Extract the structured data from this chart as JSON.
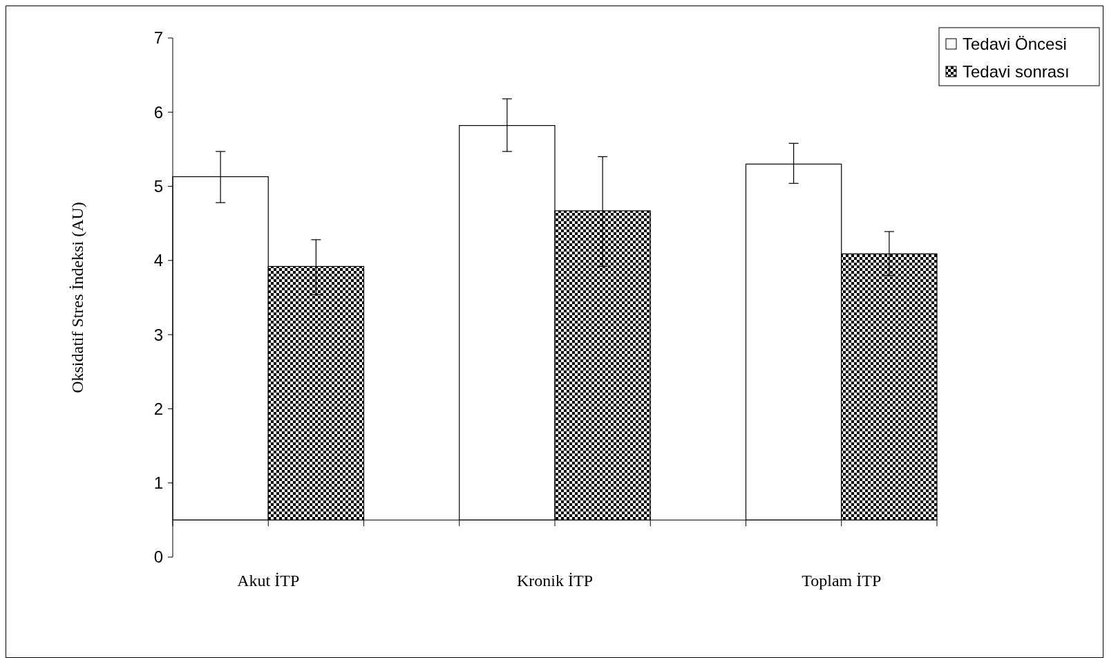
{
  "chart_data": {
    "type": "bar",
    "ylabel": "Oksidatif Stres İndeksi (AU)",
    "categories": [
      "Akut İTP",
      "Kronik İTP",
      "Toplam İTP"
    ],
    "series": [
      {
        "name": "Tedavi Öncesi",
        "color": "#ffffff",
        "base": [
          0.5,
          0.5,
          0.5
        ],
        "values": [
          4.63,
          5.32,
          4.8
        ],
        "errors": [
          [
            4.78,
            5.47
          ],
          [
            5.47,
            6.18
          ],
          [
            5.04,
            5.58
          ]
        ]
      },
      {
        "name": "Tedavi sonrası",
        "color": "#000000",
        "base": [
          0.5,
          0.5,
          0.5
        ],
        "values": [
          3.42,
          4.17,
          3.59
        ],
        "errors": [
          [
            3.54,
            4.28
          ],
          [
            3.92,
            5.4
          ],
          [
            3.8,
            4.39
          ]
        ]
      }
    ],
    "ref_lines": [
      {
        "axis": "y",
        "value": 0.5,
        "color": "#000000"
      }
    ],
    "ylim": [
      0,
      7
    ],
    "yticks": [
      0,
      1,
      2,
      3,
      4,
      5,
      6,
      7
    ],
    "legend": "top right",
    "grid": false
  }
}
